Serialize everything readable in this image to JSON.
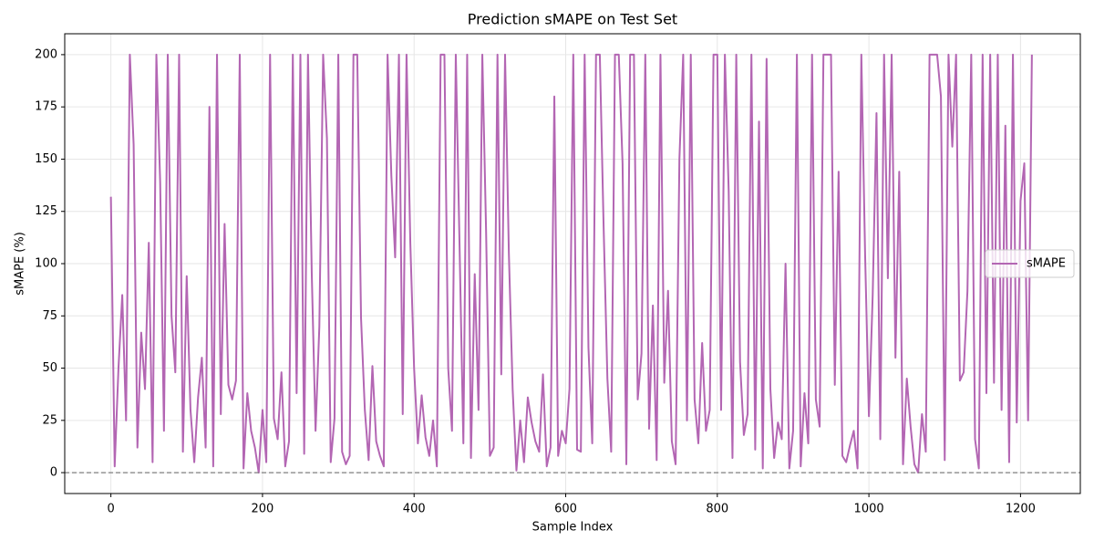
{
  "chart_data": {
    "type": "line",
    "title": "Prediction sMAPE on Test Set",
    "xlabel": "Sample Index",
    "ylabel": "sMAPE (%)",
    "x": [
      0,
      5,
      10,
      15,
      20,
      25,
      30,
      35,
      40,
      45,
      50,
      55,
      60,
      65,
      70,
      75,
      80,
      85,
      90,
      95,
      100,
      105,
      110,
      115,
      120,
      125,
      130,
      135,
      140,
      145,
      150,
      155,
      160,
      165,
      170,
      175,
      180,
      185,
      190,
      195,
      200,
      205,
      210,
      215,
      220,
      225,
      230,
      235,
      240,
      245,
      250,
      255,
      260,
      265,
      270,
      275,
      280,
      285,
      290,
      295,
      300,
      305,
      310,
      315,
      320,
      325,
      330,
      335,
      340,
      345,
      350,
      355,
      360,
      365,
      370,
      375,
      380,
      385,
      390,
      395,
      400,
      405,
      410,
      415,
      420,
      425,
      430,
      435,
      440,
      445,
      450,
      455,
      460,
      465,
      470,
      475,
      480,
      485,
      490,
      495,
      500,
      505,
      510,
      515,
      520,
      525,
      530,
      535,
      540,
      545,
      550,
      555,
      560,
      565,
      570,
      575,
      580,
      585,
      590,
      595,
      600,
      605,
      610,
      615,
      620,
      625,
      630,
      635,
      640,
      645,
      650,
      655,
      660,
      665,
      670,
      675,
      680,
      685,
      690,
      695,
      700,
      705,
      710,
      715,
      720,
      725,
      730,
      735,
      740,
      745,
      750,
      755,
      760,
      765,
      770,
      775,
      780,
      785,
      790,
      795,
      800,
      805,
      810,
      815,
      820,
      825,
      830,
      835,
      840,
      845,
      850,
      855,
      860,
      865,
      870,
      875,
      880,
      885,
      890,
      895,
      900,
      905,
      910,
      915,
      920,
      925,
      930,
      935,
      940,
      945,
      950,
      955,
      960,
      965,
      970,
      975,
      980,
      985,
      990,
      995,
      1000,
      1005,
      1010,
      1015,
      1020,
      1025,
      1030,
      1035,
      1040,
      1045,
      1050,
      1055,
      1060,
      1065,
      1070,
      1075,
      1080,
      1085,
      1090,
      1095,
      1100,
      1105,
      1110,
      1115,
      1120,
      1125,
      1130,
      1135,
      1140,
      1145,
      1150,
      1155,
      1160,
      1165,
      1170,
      1175,
      1180,
      1185,
      1190,
      1195,
      1200,
      1205,
      1210,
      1215
    ],
    "series": [
      {
        "name": "sMAPE",
        "color": "#b366b3",
        "values": [
          132,
          3,
          50,
          85,
          25,
          200,
          157,
          12,
          67,
          40,
          110,
          5,
          200,
          139,
          20,
          200,
          75,
          48,
          200,
          10,
          94,
          30,
          5,
          36,
          55,
          12,
          175,
          3,
          200,
          28,
          119,
          42,
          35,
          44,
          200,
          2,
          38,
          20,
          12,
          0,
          30,
          5,
          200,
          26,
          16,
          48,
          3,
          15,
          200,
          38,
          200,
          9,
          200,
          95,
          20,
          70,
          200,
          160,
          5,
          26,
          200,
          10,
          4,
          8,
          200,
          200,
          74,
          30,
          6,
          51,
          15,
          8,
          3,
          200,
          142,
          103,
          200,
          28,
          200,
          110,
          50,
          14,
          37,
          17,
          8,
          25,
          3,
          200,
          200,
          50,
          20,
          200,
          108,
          14,
          200,
          7,
          95,
          30,
          200,
          115,
          8,
          12,
          200,
          47,
          200,
          105,
          40,
          1,
          25,
          5,
          36,
          24,
          15,
          10,
          47,
          3,
          12,
          180,
          8,
          20,
          14,
          40,
          200,
          11,
          10,
          200,
          60,
          14,
          200,
          200,
          118,
          45,
          10,
          200,
          200,
          148,
          4,
          200,
          200,
          35,
          57,
          200,
          21,
          80,
          6,
          200,
          43,
          87,
          15,
          4,
          150,
          200,
          25,
          200,
          35,
          14,
          62,
          20,
          30,
          200,
          200,
          30,
          200,
          135,
          7,
          200,
          53,
          18,
          28,
          200,
          11,
          168,
          2,
          198,
          40,
          7,
          24,
          16,
          100,
          2,
          20,
          200,
          3,
          38,
          14,
          200,
          35,
          22,
          200,
          200,
          200,
          42,
          144,
          8,
          5,
          13,
          20,
          2,
          200,
          104,
          27,
          85,
          172,
          16,
          200,
          93,
          200,
          55,
          144,
          4,
          45,
          22,
          4,
          0,
          28,
          10,
          200,
          200,
          200,
          180,
          6,
          200,
          156,
          200,
          44,
          48,
          87,
          200,
          16,
          2,
          200,
          38,
          200,
          43,
          200,
          30,
          166,
          5,
          200,
          24,
          130,
          148,
          25,
          200
        ]
      }
    ],
    "reference_line": 0,
    "xlim": [
      -60.9,
      1278.9
    ],
    "ylim": [
      -10,
      210
    ],
    "xticks": [
      0,
      200,
      400,
      600,
      800,
      1000,
      1200
    ],
    "yticks": [
      0,
      25,
      50,
      75,
      100,
      125,
      150,
      175,
      200
    ],
    "grid": true,
    "legend": "right"
  }
}
